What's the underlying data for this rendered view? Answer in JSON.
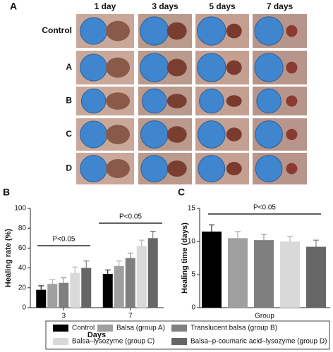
{
  "panel_labels": [
    "A",
    "B",
    "C"
  ],
  "photo_panel": {
    "columns": [
      "1 day",
      "3 days",
      "5 days",
      "7 days"
    ],
    "rows": [
      "Control",
      "A",
      "B",
      "C",
      "D"
    ]
  },
  "chart_data": [
    {
      "type": "bar",
      "y_label": "Healing rate (%)",
      "x_label": "Days",
      "categories": [
        "3",
        "7"
      ],
      "ylim": [
        0,
        100
      ],
      "yticks": [
        0,
        20,
        40,
        60,
        80,
        100
      ],
      "series": [
        {
          "name": "Control",
          "color": "#000000",
          "values": [
            18,
            34
          ],
          "errors": [
            4,
            4
          ]
        },
        {
          "name": "Balsa (group A)",
          "color": "#a0a0a0",
          "values": [
            24,
            42
          ],
          "errors": [
            4,
            5
          ]
        },
        {
          "name": "Translucent balsa (group B)",
          "color": "#7f7f7f",
          "values": [
            25,
            50
          ],
          "errors": [
            5,
            5
          ]
        },
        {
          "name": "Balsa–lysozyme (group C)",
          "color": "#d9d9d9",
          "values": [
            35,
            62
          ],
          "errors": [
            6,
            6
          ]
        },
        {
          "name": "Balsa–p-coumaric acid–lysozyme (group D)",
          "color": "#666666",
          "values": [
            40,
            70
          ],
          "errors": [
            7,
            7
          ]
        }
      ],
      "annotations": [
        "P<0.05",
        "P<0.05"
      ]
    },
    {
      "type": "bar",
      "y_label": "Healing time (days)",
      "x_label": "Group",
      "ylim": [
        0,
        15
      ],
      "yticks": [
        0,
        5,
        10,
        15
      ],
      "values": [
        11.5,
        10.5,
        10.2,
        10,
        9.2
      ],
      "errors": [
        1,
        1,
        0.9,
        0.8,
        1
      ],
      "colors": [
        "#000000",
        "#a0a0a0",
        "#7f7f7f",
        "#d9d9d9",
        "#666666"
      ],
      "annotations": [
        "P<0.05"
      ]
    }
  ]
}
